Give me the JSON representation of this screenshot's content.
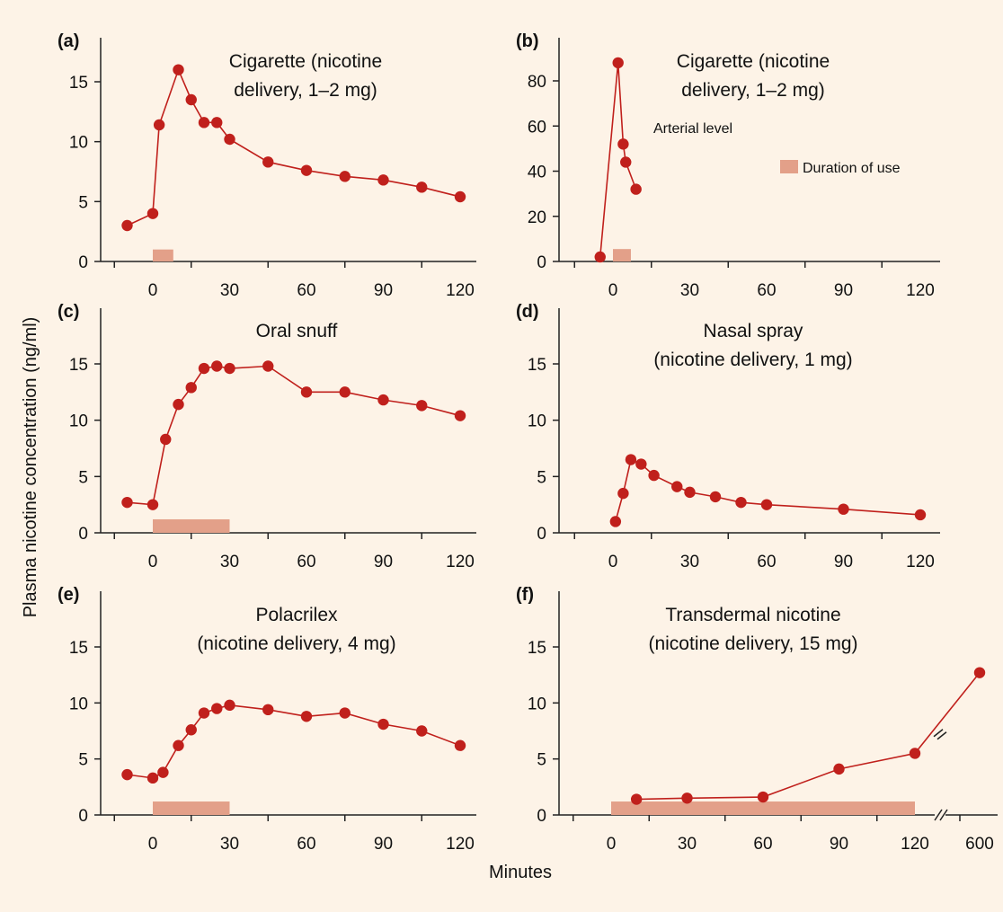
{
  "figure": {
    "ylabel": "Plasma nicotine concentration (ng/ml)",
    "xlabel": "Minutes"
  },
  "colors": {
    "background": "#fdf3e7",
    "series": "#c0201c",
    "duration_bar": "#e3a089",
    "axis": "#222222"
  },
  "chart_data": [
    {
      "type": "line",
      "panel": "(a)",
      "title_lines": [
        "Cigarette (nicotine",
        "delivery, 1–2 mg)"
      ],
      "x_ticks": [
        0,
        30,
        60,
        90,
        120
      ],
      "y_ticks": [
        0,
        5,
        10,
        15
      ],
      "xlim": [
        -20,
        130
      ],
      "ylim": [
        0,
        17.5
      ],
      "series": [
        {
          "x": [
            -10,
            0,
            2.5,
            10,
            15,
            20,
            25,
            30,
            45,
            60,
            75,
            90,
            105,
            120
          ],
          "y": [
            3,
            4,
            11.4,
            16,
            13.5,
            11.6,
            11.6,
            10.2,
            8.3,
            7.6,
            7.1,
            6.8,
            6.2,
            5.4
          ]
        }
      ],
      "duration": [
        0,
        8
      ],
      "duration_height": 1
    },
    {
      "type": "line",
      "panel": "(b)",
      "title_lines": [
        "Cigarette (nicotine",
        "delivery, 1–2 mg)"
      ],
      "annotation": "Arterial level",
      "legend": "Duration of use",
      "x_ticks": [
        0,
        30,
        60,
        90,
        120
      ],
      "y_ticks": [
        0,
        20,
        40,
        60,
        80
      ],
      "xlim": [
        -20,
        130
      ],
      "ylim": [
        0,
        97
      ],
      "series": [
        {
          "x": [
            -5,
            2,
            4,
            5,
            9
          ],
          "y": [
            2,
            88,
            52,
            44,
            32
          ]
        }
      ],
      "duration": [
        0,
        7
      ],
      "duration_height": 5.5
    },
    {
      "type": "line",
      "panel": "(c)",
      "title_lines": [
        "Oral snuff"
      ],
      "x_ticks": [
        0,
        30,
        60,
        90,
        120
      ],
      "y_ticks": [
        0,
        5,
        10,
        15
      ],
      "xlim": [
        -20,
        130
      ],
      "ylim": [
        0,
        17.5
      ],
      "series": [
        {
          "x": [
            -10,
            0,
            5,
            10,
            15,
            20,
            25,
            30,
            45,
            60,
            75,
            90,
            105,
            120
          ],
          "y": [
            2.7,
            2.5,
            8.3,
            11.4,
            12.9,
            14.6,
            14.8,
            14.6,
            14.8,
            12.5,
            12.5,
            11.8,
            11.3,
            10.4
          ]
        }
      ],
      "duration": [
        0,
        30
      ],
      "duration_height": 1.2
    },
    {
      "type": "line",
      "panel": "(d)",
      "title_lines": [
        "Nasal spray",
        "(nicotine delivery, 1 mg)"
      ],
      "x_ticks": [
        0,
        30,
        60,
        90,
        120
      ],
      "y_ticks": [
        0,
        5,
        10,
        15
      ],
      "xlim": [
        -20,
        130
      ],
      "ylim": [
        0,
        17.5
      ],
      "series": [
        {
          "x": [
            1,
            4,
            7,
            11,
            16,
            25,
            30,
            40,
            50,
            60,
            90,
            120
          ],
          "y": [
            1,
            3.5,
            6.5,
            6.1,
            5.1,
            4.1,
            3.6,
            3.2,
            2.7,
            2.5,
            2.1,
            1.6
          ]
        }
      ]
    },
    {
      "type": "line",
      "panel": "(e)",
      "title_lines": [
        "Polacrilex",
        "(nicotine delivery, 4 mg)"
      ],
      "x_ticks": [
        0,
        30,
        60,
        90,
        120
      ],
      "y_ticks": [
        0,
        5,
        10,
        15
      ],
      "xlim": [
        -20,
        130
      ],
      "ylim": [
        0,
        17.5
      ],
      "series": [
        {
          "x": [
            -10,
            0,
            4,
            10,
            15,
            20,
            25,
            30,
            45,
            60,
            75,
            90,
            105,
            120
          ],
          "y": [
            3.6,
            3.3,
            3.8,
            6.2,
            7.6,
            9.1,
            9.5,
            9.8,
            9.4,
            8.8,
            9.1,
            8.1,
            7.5,
            6.2
          ]
        }
      ],
      "duration": [
        0,
        30
      ],
      "duration_height": 1.2
    },
    {
      "type": "line",
      "panel": "(f)",
      "title_lines": [
        "Transdermal nicotine",
        "(nicotine delivery, 15 mg)"
      ],
      "x_ticks": [
        0,
        30,
        60,
        90,
        120,
        600
      ],
      "x_axis_break": true,
      "y_ticks": [
        0,
        5,
        10,
        15
      ],
      "xlim": [
        -20,
        150
      ],
      "ylim": [
        0,
        17.5
      ],
      "series": [
        {
          "x": [
            10,
            30,
            60,
            90,
            120,
            600
          ],
          "y": [
            1.4,
            1.5,
            1.6,
            4.1,
            5.5,
            12.7
          ]
        }
      ],
      "duration": [
        0,
        120
      ],
      "duration_height": 1.2
    }
  ]
}
